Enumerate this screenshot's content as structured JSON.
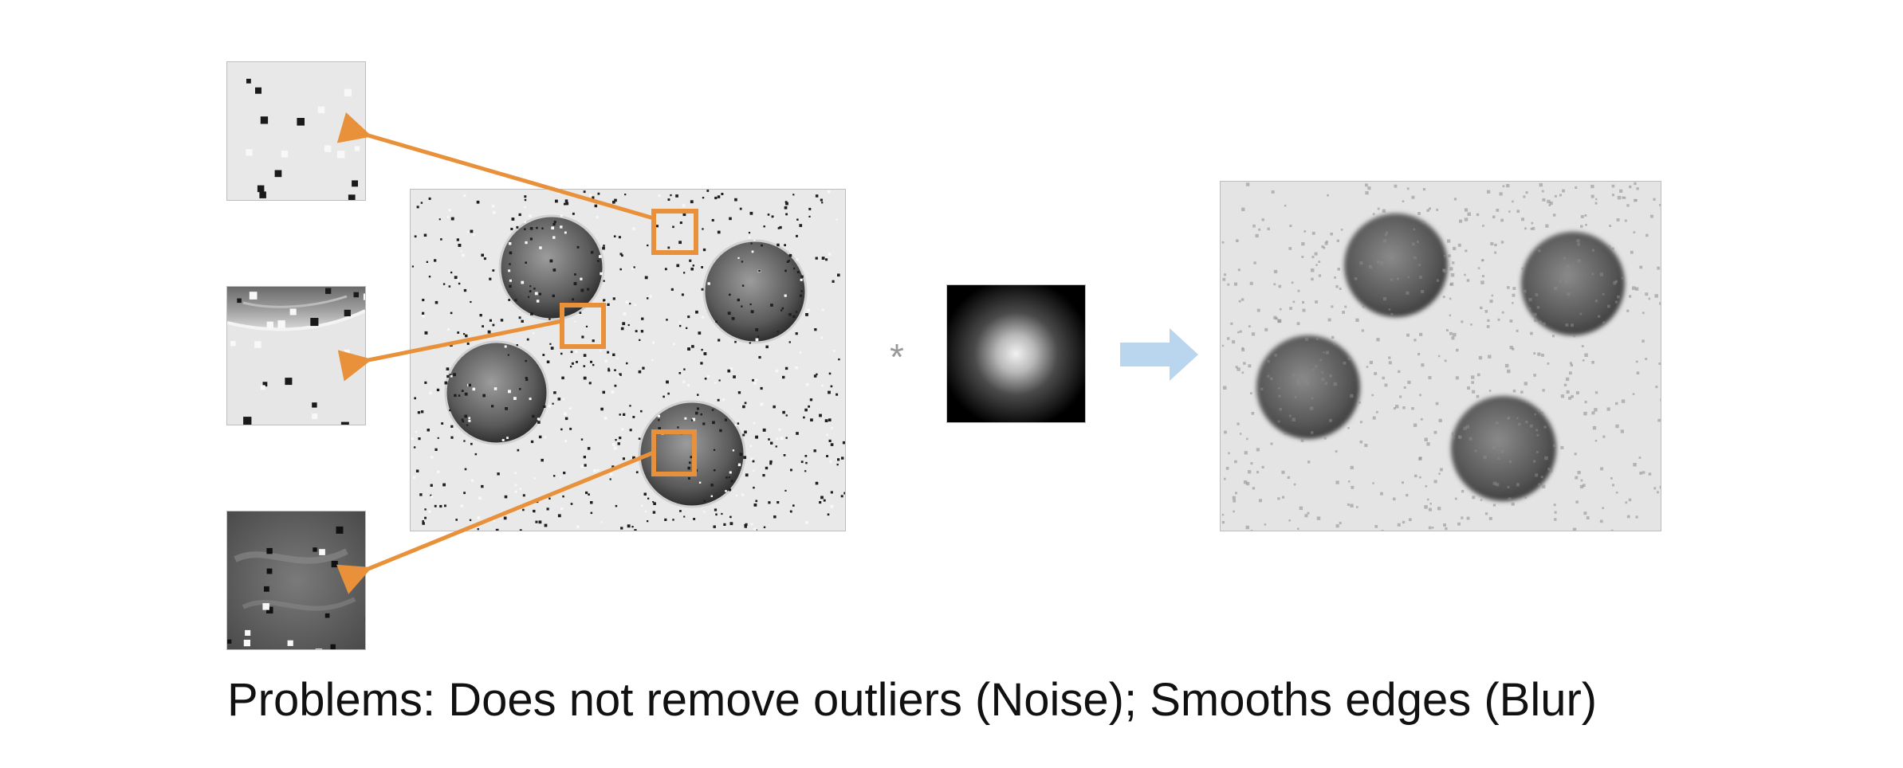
{
  "caption": "Problems: Does not remove outliers (Noise); Smooths edges (Blur)",
  "operator_symbol": "*",
  "colors": {
    "highlight": "#E8913A",
    "arrow_flow": "#B9D6EE",
    "noise_dark": "#1a1a1a",
    "background_paper": "#e9e9e9"
  },
  "panels": {
    "noisy_image": "noisy-coins-image",
    "zoom_background": "zoom-background-patch",
    "zoom_edge": "zoom-coin-edge-patch",
    "zoom_coin": "zoom-coin-interior-patch",
    "kernel": "gaussian-kernel",
    "result": "smoothed-coins-image"
  }
}
